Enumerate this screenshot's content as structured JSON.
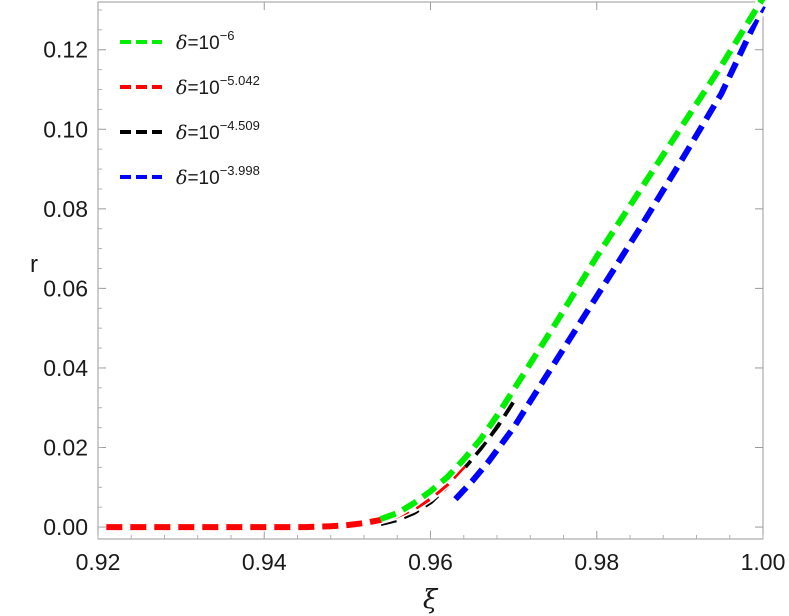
{
  "chart_data": {
    "type": "line",
    "xlabel": "ξ",
    "ylabel": "r",
    "xlim": [
      0.92,
      1.0
    ],
    "ylim": [
      -0.003,
      0.132
    ],
    "xticks": [
      "0.92",
      "0.94",
      "0.96",
      "0.98",
      "1.00"
    ],
    "yticks": [
      "0.00",
      "0.02",
      "0.04",
      "0.06",
      "0.08",
      "0.10",
      "0.12"
    ],
    "grid": false,
    "legend_position": "top-left",
    "series": [
      {
        "name_symbol": "δ",
        "name_base": "=10",
        "name_exponent": "−6",
        "color": "#00ee00",
        "x": [
          0.954,
          0.956,
          0.958,
          0.96,
          0.962,
          0.964,
          0.966,
          0.968,
          0.97,
          0.975,
          0.98,
          0.985,
          0.99,
          0.995,
          1.0
        ],
        "y": [
          0.002,
          0.0035,
          0.006,
          0.009,
          0.0125,
          0.017,
          0.022,
          0.028,
          0.0345,
          0.051,
          0.068,
          0.084,
          0.1,
          0.116,
          0.133
        ]
      },
      {
        "name_symbol": "δ",
        "name_base": "=10",
        "name_exponent": "−5.042",
        "color": "#ff0000",
        "x": [
          0.921,
          0.93,
          0.94,
          0.945,
          0.948,
          0.95,
          0.952,
          0.954,
          0.956,
          0.958,
          0.96,
          0.962,
          0.964
        ],
        "y": [
          0.0,
          0.0,
          0.0,
          0.0,
          0.0002,
          0.0005,
          0.001,
          0.0018,
          0.003,
          0.0048,
          0.0075,
          0.011,
          0.0155
        ]
      },
      {
        "name_symbol": "δ",
        "name_base": "=10",
        "name_exponent": "−4.509",
        "color": "#000000",
        "x": [
          0.954,
          0.956,
          0.958,
          0.96,
          0.962,
          0.964,
          0.966,
          0.968,
          0.97
        ],
        "y": [
          0.001,
          0.002,
          0.0038,
          0.0065,
          0.0105,
          0.015,
          0.02,
          0.0255,
          0.032
        ]
      },
      {
        "name_symbol": "δ",
        "name_base": "=10",
        "name_exponent": "−3.998",
        "color": "#0000ff",
        "x": [
          0.963,
          0.965,
          0.967,
          0.97,
          0.975,
          0.98,
          0.985,
          0.99,
          0.995,
          1.0
        ],
        "y": [
          0.007,
          0.0115,
          0.0165,
          0.025,
          0.0415,
          0.058,
          0.0745,
          0.0915,
          0.109,
          0.131
        ]
      }
    ]
  }
}
